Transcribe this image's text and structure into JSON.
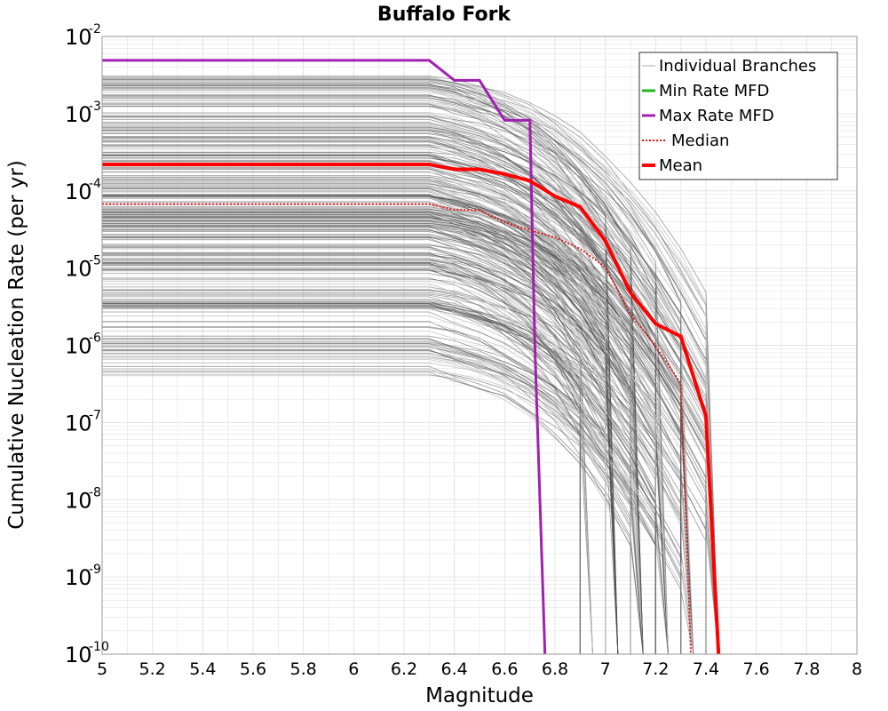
{
  "chart_data": {
    "type": "line",
    "title": "Buffalo Fork",
    "xlabel": "Magnitude",
    "ylabel": "Cumulative Nucleation Rate (per yr)",
    "xlim": [
      5,
      8
    ],
    "ylim_log10": [
      -10,
      -2
    ],
    "x_ticks": [
      "5",
      "5.2",
      "5.4",
      "5.6",
      "5.8",
      "6",
      "6.2",
      "6.4",
      "6.6",
      "6.8",
      "7",
      "7.2",
      "7.4",
      "7.6",
      "7.8",
      "8"
    ],
    "y_tick_base": "10",
    "y_tick_exponents": [
      "-10",
      "-9",
      "-8",
      "-7",
      "-6",
      "-5",
      "-4",
      "-3",
      "-2"
    ],
    "grid": true,
    "legend_position": "top-right",
    "legend": [
      "Individual Branches",
      "Min Rate MFD",
      "Max Rate MFD",
      "Median",
      "Mean"
    ],
    "colors": {
      "branches_light": "#c8c8c8",
      "branches_dark": "#4d4d4d",
      "min": "#1fb51f",
      "max": "#a020b0",
      "median": "#e81010",
      "mean": "#ff0000",
      "grid": "#e4e4e4"
    },
    "series": [
      {
        "name": "Max Rate MFD",
        "x": [
          5.0,
          6.3,
          6.4,
          6.5,
          6.6,
          6.7,
          6.72,
          6.76
        ],
        "y": [
          0.0049,
          0.0049,
          0.0027,
          0.0027,
          0.00082,
          0.00082,
          1e-06,
          1e-10
        ]
      },
      {
        "name": "Mean",
        "x": [
          5.0,
          6.3,
          6.4,
          6.5,
          6.6,
          6.7,
          6.8,
          6.9,
          7.0,
          7.1,
          7.2,
          7.3,
          7.4,
          7.45
        ],
        "y": [
          0.00022,
          0.00022,
          0.00019,
          0.00019,
          0.000165,
          0.000135,
          8.5e-05,
          6.2e-05,
          2.25e-05,
          4.8e-06,
          1.9e-06,
          1.3e-06,
          1.2e-07,
          1e-10
        ]
      },
      {
        "name": "Median",
        "x": [
          5.0,
          6.3,
          6.4,
          6.5,
          6.6,
          6.7,
          6.8,
          6.9,
          7.0,
          7.1,
          7.2,
          7.3,
          7.34
        ],
        "y": [
          6.75e-05,
          6.75e-05,
          5.7e-05,
          5.6e-05,
          3.9e-05,
          3.1e-05,
          2.5e-05,
          1.78e-05,
          1.03e-05,
          2.5e-06,
          9.8e-07,
          3.2e-07,
          1e-10
        ]
      }
    ]
  }
}
